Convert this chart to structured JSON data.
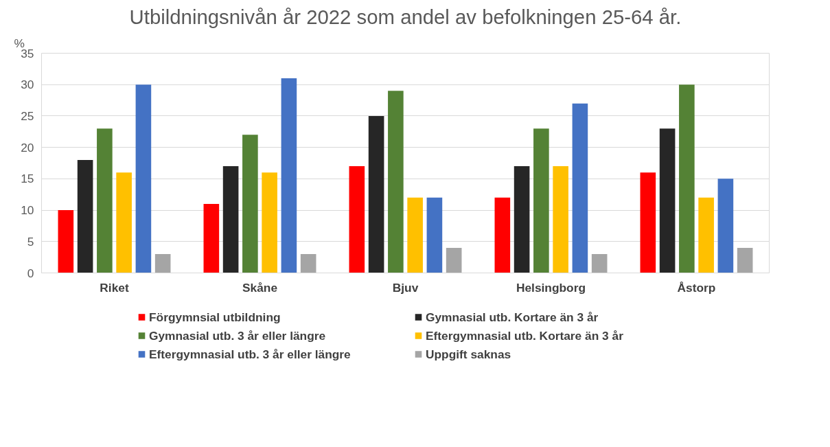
{
  "chart_data": {
    "type": "bar",
    "title": "Utbildningsnivån år 2022 som andel av befolkningen 25-64 år.",
    "ylabel": "%",
    "categories": [
      "Riket",
      "Skåne",
      "Bjuv",
      "Helsingborg",
      "Åstorp"
    ],
    "series": [
      {
        "name": "Förgymnsial utbildning",
        "color": "#ff0000",
        "values": [
          10,
          11,
          17,
          12,
          16
        ]
      },
      {
        "name": "Gymnasial utb. Kortare än 3 år",
        "color": "#262626",
        "values": [
          18,
          17,
          25,
          17,
          23
        ]
      },
      {
        "name": "Gymnasial utb. 3 år eller längre",
        "color": "#548235",
        "values": [
          23,
          22,
          29,
          23,
          30
        ]
      },
      {
        "name": "Eftergymnasial utb. Kortare än 3 år",
        "color": "#ffc000",
        "values": [
          16,
          16,
          12,
          17,
          12
        ]
      },
      {
        "name": "Eftergymnasial utb. 3 år eller längre",
        "color": "#4472c4",
        "values": [
          30,
          31,
          12,
          27,
          15
        ]
      },
      {
        "name": "Uppgift saknas",
        "color": "#a5a5a5",
        "values": [
          3,
          3,
          4,
          3,
          4
        ]
      }
    ],
    "ylim": [
      0,
      35
    ],
    "yticks": [
      0,
      5,
      10,
      15,
      20,
      25,
      30,
      35
    ],
    "grid": "y",
    "legend": "bottom"
  }
}
